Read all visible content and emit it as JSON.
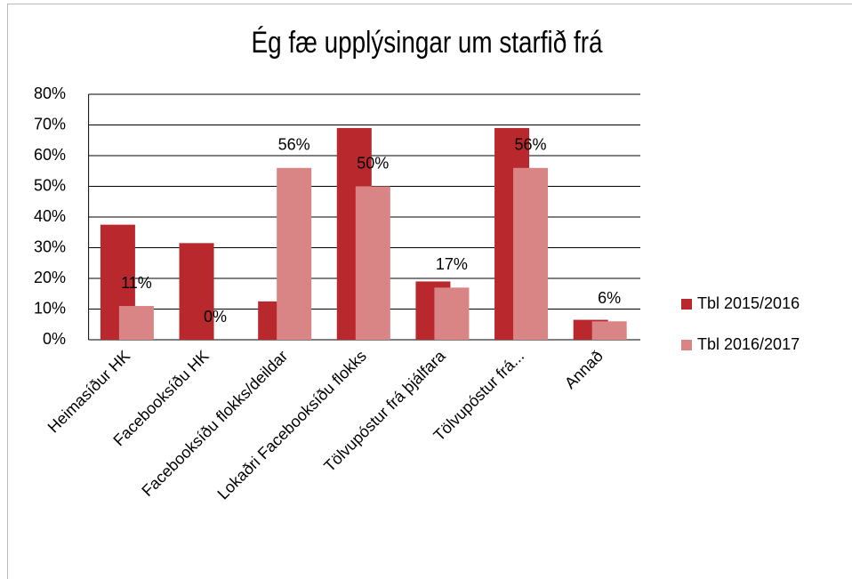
{
  "chart_data": {
    "type": "bar",
    "title": "Ég fæ upplýsingar um starfið frá",
    "categories": [
      "Heimasíður HK",
      "Facebooksíðu HK",
      "Facebooksíðu flokks/deildar",
      "Lokaðri Facebooksíðu flokks",
      "Tölvupóstur frá þjálfara",
      "Tölvupóstur frá...",
      "Annað"
    ],
    "series": [
      {
        "name": "Tbl 2015/2016",
        "color": "#b9282c",
        "values": [
          37.5,
          31.5,
          12.5,
          69,
          19,
          69,
          6.5
        ]
      },
      {
        "name": "Tbl 2016/2017",
        "color": "#d98585",
        "values": [
          11,
          0,
          56,
          50,
          17,
          56,
          6
        ],
        "value_labels": [
          "11%",
          "0%",
          "56%",
          "50%",
          "17%",
          "56%",
          "6%"
        ]
      }
    ],
    "ylim": [
      0,
      80
    ],
    "yticks": [
      {
        "value": 0,
        "label": "0%"
      },
      {
        "value": 10,
        "label": "10%"
      },
      {
        "value": 20,
        "label": "20%"
      },
      {
        "value": 30,
        "label": "30%"
      },
      {
        "value": 40,
        "label": "40%"
      },
      {
        "value": 50,
        "label": "50%"
      },
      {
        "value": 60,
        "label": "60%"
      },
      {
        "value": 70,
        "label": "70%"
      },
      {
        "value": 80,
        "label": "80%"
      }
    ],
    "grid": true,
    "legend": "right"
  }
}
